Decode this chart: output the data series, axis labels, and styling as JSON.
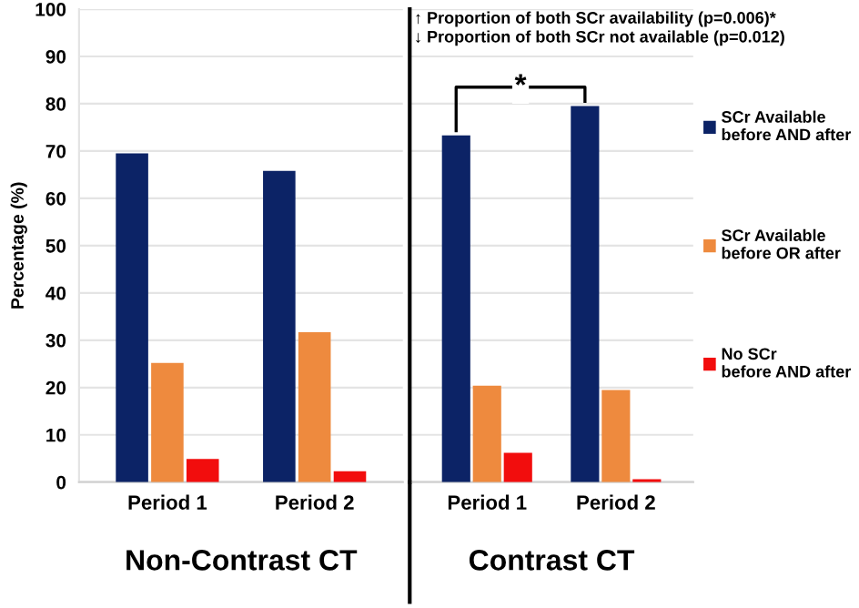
{
  "chart_data": [
    {
      "type": "bar",
      "categories": [
        "Period 1",
        "Period 2"
      ],
      "xlabel": "Non-Contrast CT",
      "ylabel": "Percentage (%)",
      "ylim": [
        0,
        100
      ],
      "yticks": [
        0,
        10,
        20,
        30,
        40,
        50,
        60,
        70,
        80,
        90,
        100
      ],
      "grid": "y",
      "legend": false,
      "series": [
        {
          "color": "#0c2366",
          "values": [
            69.5,
            65.8
          ]
        },
        {
          "color": "#ee8a3e",
          "values": [
            25.2,
            31.7
          ]
        },
        {
          "color": "#f20d0d",
          "values": [
            4.9,
            2.3
          ]
        }
      ]
    },
    {
      "type": "bar",
      "categories": [
        "Period 1",
        "Period 2"
      ],
      "xlabel": "Contrast CT",
      "ylim": [
        0,
        100
      ],
      "yticks": [
        0,
        10,
        20,
        30,
        40,
        50,
        60,
        70,
        80,
        90,
        100
      ],
      "grid": "y",
      "tick_labels": "x",
      "legend": "right",
      "series": [
        {
          "name": "SCr Available\nbefore AND after",
          "color": "#0c2366",
          "values": [
            73.3,
            79.5
          ]
        },
        {
          "name": "SCr Available\nbefore OR after",
          "color": "#ee8a3e",
          "values": [
            20.4,
            19.5
          ]
        },
        {
          "name": "No SCr\nbefore AND after",
          "color": "#f20d0d",
          "values": [
            6.2,
            0.6
          ]
        }
      ],
      "annotations": [
        "↑ Proportion of both SCr availability (p=0.006)*",
        "↓ Proportion of both SCr not available (p=0.012)",
        "*"
      ]
    }
  ]
}
